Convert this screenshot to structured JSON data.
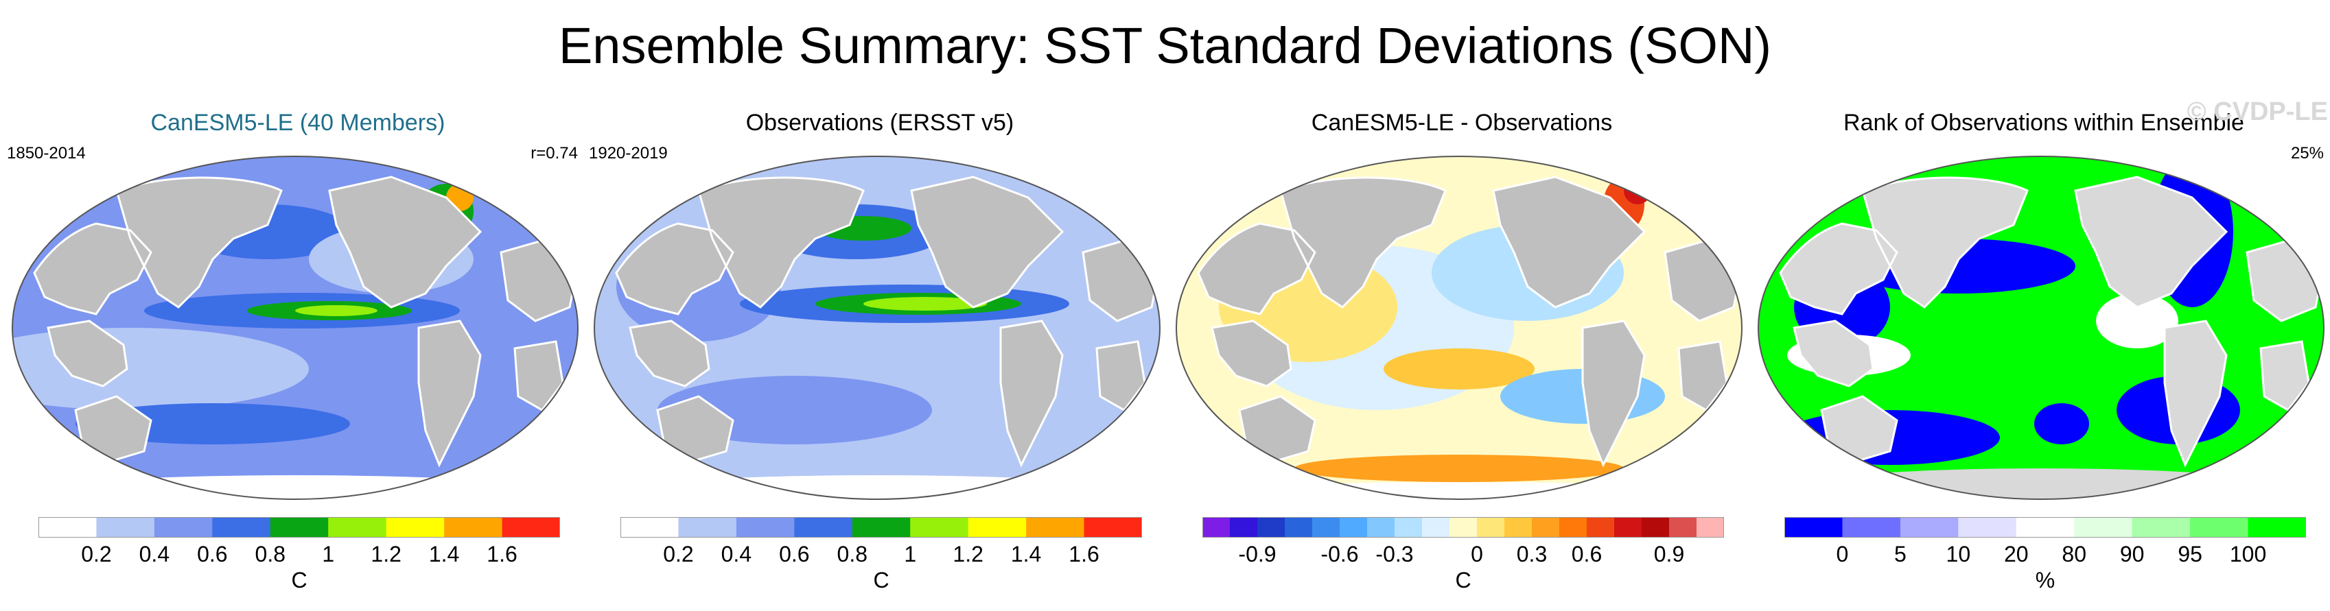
{
  "title": "Ensemble Summary: SST Standard Deviations (SON)",
  "watermark": "© CVDP-LE",
  "panels": [
    {
      "title": "CanESM5-LE (40 Members)",
      "title_color": "#1f6f8b",
      "left_label": "1850-2014",
      "right_label": "r=0.74",
      "colorbar": {
        "colors": [
          "#ffffff",
          "#b4c8f5",
          "#7d96f0",
          "#3c6ee6",
          "#0aa514",
          "#96f00a",
          "#ffff00",
          "#ffa500",
          "#ff2814"
        ],
        "ticks": [
          "0.2",
          "0.4",
          "0.6",
          "0.8",
          "1",
          "1.2",
          "1.4",
          "1.6"
        ],
        "unit": "C"
      }
    },
    {
      "title": "Observations (ERSST v5)",
      "title_color": "#000000",
      "left_label": "1920-2019",
      "right_label": "",
      "colorbar": {
        "colors": [
          "#ffffff",
          "#b4c8f5",
          "#7d96f0",
          "#3c6ee6",
          "#0aa514",
          "#96f00a",
          "#ffff00",
          "#ffa500",
          "#ff2814"
        ],
        "ticks": [
          "0.2",
          "0.4",
          "0.6",
          "0.8",
          "1",
          "1.2",
          "1.4",
          "1.6"
        ],
        "unit": "C"
      }
    },
    {
      "title": "CanESM5-LE - Observations",
      "title_color": "#000000",
      "left_label": "",
      "right_label": "",
      "colorbar": {
        "colors": [
          "#7d1ee6",
          "#3214dc",
          "#1e3cc8",
          "#2864dc",
          "#3c8cf0",
          "#50aaff",
          "#82c8ff",
          "#b4e1ff",
          "#dcf0ff",
          "#fffac8",
          "#ffe678",
          "#ffc83c",
          "#ffa01e",
          "#ff780a",
          "#f04614",
          "#d21414",
          "#b40a0a",
          "#dc5050",
          "#ffb4b4"
        ],
        "ticks": [
          "-0.9",
          "-0.6",
          "-0.3",
          "0",
          "0.3",
          "0.6",
          "0.9"
        ],
        "unit": "C"
      }
    },
    {
      "title": "Rank of Observations within Ensemble",
      "title_color": "#000000",
      "left_label": "",
      "right_label": "25%",
      "colorbar": {
        "colors": [
          "#0000ff",
          "#6e6eff",
          "#aaaaff",
          "#e1e1ff",
          "#ffffff",
          "#e1ffe1",
          "#aaffaa",
          "#6eff6e",
          "#00ff00"
        ],
        "ticks": [
          "0",
          "5",
          "10",
          "20",
          "80",
          "90",
          "95",
          "100"
        ],
        "unit": "%"
      }
    }
  ]
}
